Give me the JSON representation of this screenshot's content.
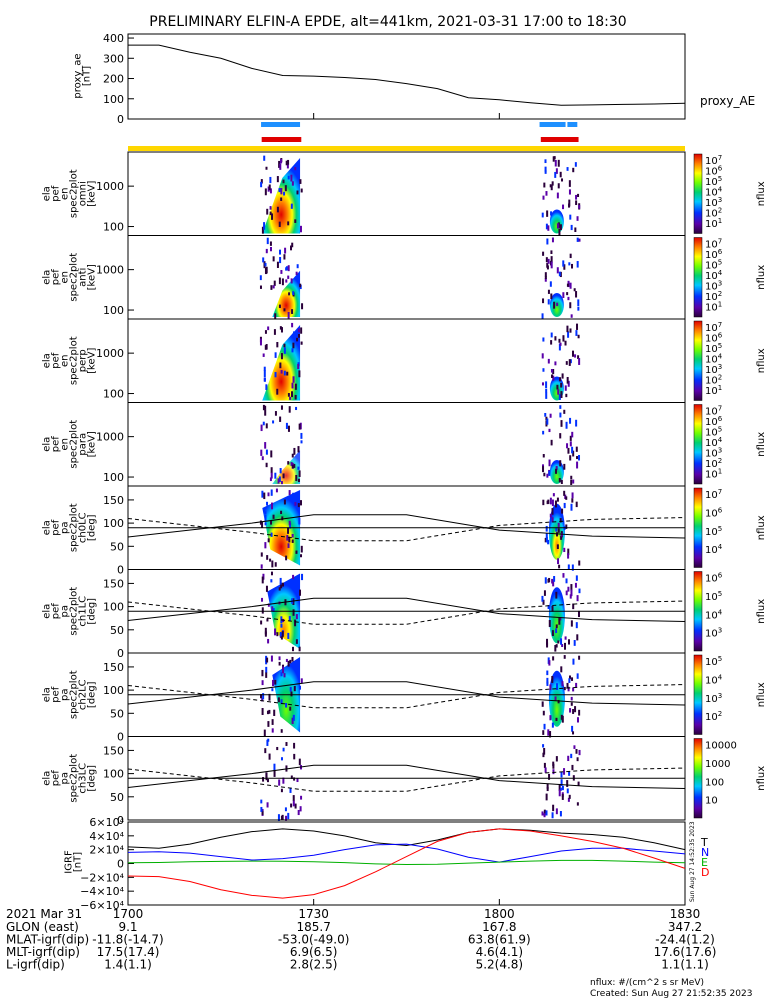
{
  "title": "PRELIMINARY ELFIN-A EPDE, alt=441km, 2021-03-31 17:00 to 18:30",
  "created": "Created: Sun Aug 27 21:52:35 2023",
  "flux_units": "nflux: #/(cm^2 s sr MeV)",
  "side_stamp": "Sun Aug 27 14:52:35 2023",
  "colors": {
    "blue_bar": "#1e90ff",
    "red_bar": "#e00000",
    "yellow_bar": "#ffd700",
    "north": "#0000ff",
    "east": "#00b000",
    "down": "#ff0000",
    "total": "#000000"
  },
  "chart_data": [
    {
      "type": "line",
      "id": "proxy_ae",
      "ylabel": [
        "proxy_ae",
        "[nT]"
      ],
      "legend": "proxy_AE",
      "ylim": [
        0,
        420
      ],
      "yticks": [
        "400",
        "300",
        "200",
        "100",
        "0"
      ],
      "x_minutes": [
        0,
        5,
        10,
        15,
        20,
        25,
        30,
        35,
        40,
        45,
        50,
        55,
        60,
        65,
        70,
        75,
        80,
        85,
        90
      ],
      "values": [
        365,
        365,
        330,
        300,
        250,
        215,
        212,
        205,
        195,
        175,
        150,
        105,
        95,
        80,
        68,
        70,
        72,
        74,
        78
      ]
    },
    {
      "type": "table",
      "id": "science_zones",
      "blue_intervals_min": [
        [
          21.5,
          27.8
        ],
        [
          66.5,
          70.7
        ],
        [
          71.0,
          72.6
        ]
      ],
      "red_intervals_min": [
        [
          21.6,
          28.0
        ],
        [
          66.7,
          72.8
        ]
      ],
      "yellow_interval_min": [
        0,
        90
      ]
    },
    {
      "type": "heatmap",
      "id": "omni",
      "ylabel": [
        "ela",
        "pef",
        "en",
        "spec2plot",
        "omni",
        "[keV]"
      ],
      "yscale": "log",
      "yticks": [
        "1000",
        "100"
      ],
      "colorbar": {
        "label": "nflux",
        "ticks": [
          "10^7",
          "10^6",
          "10^5",
          "10^4",
          "10^3",
          "10^2",
          "10^1"
        ]
      }
    },
    {
      "type": "heatmap",
      "id": "anti",
      "ylabel": [
        "ela",
        "pef",
        "en",
        "spec2plot",
        "anti",
        "[keV]"
      ],
      "yscale": "log",
      "yticks": [
        "1000",
        "100"
      ],
      "colorbar": {
        "label": "nflux",
        "ticks": [
          "10^7",
          "10^6",
          "10^5",
          "10^4",
          "10^3",
          "10^2",
          "10^1"
        ]
      }
    },
    {
      "type": "heatmap",
      "id": "perp",
      "ylabel": [
        "ela",
        "pef",
        "en",
        "spec2plot",
        "perp",
        "[keV]"
      ],
      "yscale": "log",
      "yticks": [
        "1000",
        "100"
      ],
      "colorbar": {
        "label": "nflux",
        "ticks": [
          "10^7",
          "10^6",
          "10^5",
          "10^4",
          "10^3",
          "10^2",
          "10^1"
        ]
      }
    },
    {
      "type": "heatmap",
      "id": "para",
      "ylabel": [
        "ela",
        "pef",
        "en",
        "spec2plot",
        "para",
        "[keV]"
      ],
      "yscale": "log",
      "yticks": [
        "1000",
        "100"
      ],
      "colorbar": {
        "label": "nflux",
        "ticks": [
          "10^7",
          "10^6",
          "10^5",
          "10^4",
          "10^3",
          "10^2",
          "10^1"
        ]
      }
    },
    {
      "type": "heatmap",
      "id": "ch0LC",
      "ylabel": [
        "ela",
        "pef",
        "pa",
        "spec2plot",
        "ch0LC",
        "[deg]"
      ],
      "ylim": [
        0,
        180
      ],
      "yticks": [
        "150",
        "100",
        "50",
        "0"
      ],
      "colorbar": {
        "label": "nflux",
        "ticks": [
          "10^7",
          "10^6",
          "10^5",
          "10^4"
        ]
      }
    },
    {
      "type": "heatmap",
      "id": "ch1LC",
      "ylabel": [
        "ela",
        "pef",
        "pa",
        "spec2plot",
        "ch1LC",
        "[deg]"
      ],
      "ylim": [
        0,
        180
      ],
      "yticks": [
        "150",
        "100",
        "50",
        "0"
      ],
      "colorbar": {
        "label": "nflux",
        "ticks": [
          "10^6",
          "10^5",
          "10^4",
          "10^3"
        ]
      }
    },
    {
      "type": "heatmap",
      "id": "ch2LC",
      "ylabel": [
        "ela",
        "pef",
        "pa",
        "spec2plot",
        "ch2LC",
        "[deg]"
      ],
      "ylim": [
        0,
        180
      ],
      "yticks": [
        "150",
        "100",
        "50",
        "0"
      ],
      "colorbar": {
        "label": "nflux",
        "ticks": [
          "10^5",
          "10^4",
          "10^3",
          "10^2"
        ]
      }
    },
    {
      "type": "heatmap",
      "id": "ch3LC",
      "ylabel": [
        "ela",
        "pef",
        "pa",
        "spec2plot",
        "ch3LC",
        "[deg]"
      ],
      "ylim": [
        0,
        180
      ],
      "yticks": [
        "150",
        "100",
        "50",
        "0"
      ],
      "colorbar": {
        "label": "nflux",
        "ticks": [
          "10000",
          "1000",
          "100",
          "10"
        ]
      }
    },
    {
      "type": "line",
      "id": "igrf",
      "ylabel": [
        "IGRF",
        "[nT]"
      ],
      "ylim": [
        -60000,
        60000
      ],
      "yticks": [
        "6×10⁴",
        "4×10⁴",
        "2×10⁴",
        "0",
        "−2×10⁴",
        "−4×10⁴",
        "−6×10⁴"
      ],
      "legend": [
        "T",
        "N",
        "E",
        "D"
      ],
      "x_minutes": [
        0,
        5,
        10,
        15,
        20,
        25,
        30,
        35,
        40,
        45,
        50,
        55,
        60,
        65,
        70,
        75,
        80,
        85,
        90
      ],
      "series": [
        {
          "name": "T",
          "values": [
            24000,
            22000,
            28000,
            38000,
            46000,
            50000,
            47000,
            40000,
            30000,
            26000,
            34000,
            45000,
            50000,
            48000,
            44000,
            42000,
            38000,
            30000,
            20000
          ]
        },
        {
          "name": "N",
          "values": [
            16000,
            17000,
            15000,
            10000,
            5000,
            7000,
            12000,
            20000,
            27000,
            28000,
            21000,
            9000,
            2000,
            10000,
            18000,
            22000,
            22000,
            18000,
            14000
          ]
        },
        {
          "name": "E",
          "values": [
            1000,
            1500,
            2500,
            3000,
            3500,
            3200,
            2500,
            1200,
            -500,
            -1500,
            -1000,
            500,
            2000,
            3500,
            4500,
            4500,
            3500,
            2000,
            1000
          ]
        },
        {
          "name": "D",
          "values": [
            -18000,
            -19000,
            -26000,
            -38000,
            -46000,
            -50000,
            -45000,
            -32000,
            -12000,
            10000,
            32000,
            45000,
            50000,
            47000,
            40000,
            32000,
            22000,
            8000,
            -7000
          ]
        }
      ]
    }
  ],
  "footer": {
    "time_label": "2021 Mar 31",
    "time_ticks": [
      "1700",
      "1730",
      "1800",
      "1830"
    ],
    "rows": [
      {
        "label": "GLON (east)",
        "values": [
          "9.1",
          "185.7",
          "167.8",
          "347.2"
        ]
      },
      {
        "label": "MLAT-igrf(dip)",
        "values": [
          "-11.8(-14.7)",
          "-53.0(-49.0)",
          "63.8(61.9)",
          "-24.4(1.2)"
        ]
      },
      {
        "label": "MLT-igrf(dip)",
        "values": [
          "17.5(17.4)",
          "6.9(6.5)",
          "4.6(4.1)",
          "17.6(17.6)"
        ]
      },
      {
        "label": "L-igrf(dip)",
        "values": [
          "1.4(1.1)",
          "2.8(2.5)",
          "5.2(4.8)",
          "1.1(1.1)"
        ]
      }
    ]
  }
}
